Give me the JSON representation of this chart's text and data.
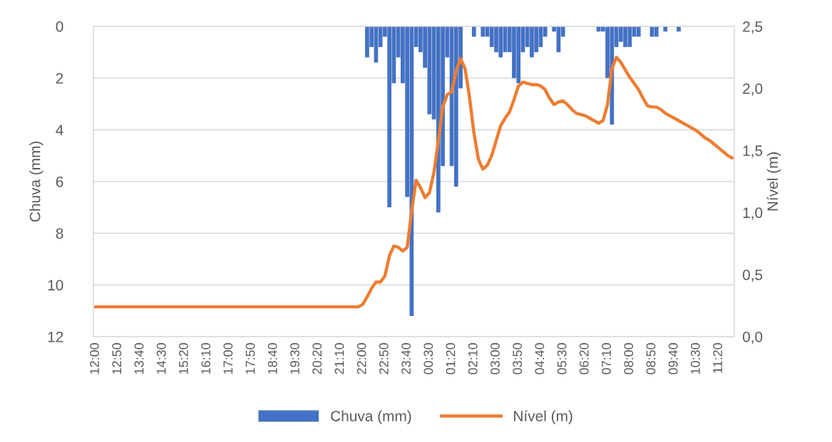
{
  "chart_data": {
    "type": "bar",
    "xlabel": null,
    "ylabel": "Chuva (mm)",
    "y2label": "Nível (m)",
    "categories": [
      "12:00",
      null,
      null,
      null,
      null,
      "12:50",
      null,
      null,
      null,
      null,
      "13:40",
      null,
      null,
      null,
      null,
      "14:30",
      null,
      null,
      null,
      null,
      "15:20",
      null,
      null,
      null,
      null,
      "16:10",
      null,
      null,
      null,
      null,
      "17:00",
      null,
      null,
      null,
      null,
      "17:50",
      null,
      null,
      null,
      null,
      "18:40",
      null,
      null,
      null,
      null,
      "19:30",
      null,
      null,
      null,
      null,
      "20:20",
      null,
      null,
      null,
      null,
      "21:10",
      null,
      null,
      null,
      null,
      "22:00",
      null,
      null,
      null,
      null,
      "22:50",
      null,
      null,
      null,
      null,
      "23:40",
      null,
      null,
      null,
      null,
      "00:30",
      null,
      null,
      null,
      null,
      "01:20",
      null,
      null,
      null,
      null,
      "02:10",
      null,
      null,
      null,
      null,
      "03:00",
      null,
      null,
      null,
      null,
      "03:50",
      null,
      null,
      null,
      null,
      "04:40",
      null,
      null,
      null,
      null,
      "05:30",
      null,
      null,
      null,
      null,
      "06:20",
      null,
      null,
      null,
      null,
      "07:10",
      null,
      null,
      null,
      null,
      "08:00",
      null,
      null,
      null,
      null,
      "08:50",
      null,
      null,
      null,
      null,
      "09:40",
      null,
      null,
      null,
      null,
      "10:30",
      null,
      null,
      null,
      null,
      "11:20",
      null,
      null,
      null
    ],
    "series": [
      {
        "name": "Chuva (mm)",
        "color": "#4472c4",
        "values": [
          0,
          0,
          0,
          0,
          0,
          0,
          0,
          0,
          0,
          0,
          0,
          0,
          0,
          0,
          0,
          0,
          0,
          0,
          0,
          0,
          0,
          0,
          0,
          0,
          0,
          0,
          0,
          0,
          0,
          0,
          0,
          0,
          0,
          0,
          0,
          0,
          0,
          0,
          0,
          0,
          0,
          0,
          0,
          0,
          0,
          0,
          0,
          0,
          0,
          0,
          0,
          0,
          0,
          0,
          0,
          0,
          0,
          0,
          0,
          0,
          0,
          1.2,
          0.8,
          1.4,
          0.8,
          0.4,
          7.0,
          2.2,
          1.2,
          2.2,
          6.6,
          11.2,
          0.8,
          1.0,
          1.6,
          3.4,
          3.6,
          7.2,
          5.4,
          1.2,
          5.4,
          6.2,
          2.4,
          0,
          0,
          0.4,
          0,
          0.4,
          0.4,
          0.8,
          1.0,
          1.2,
          1.0,
          1.0,
          2.0,
          2.2,
          1.0,
          0.8,
          1.2,
          1.0,
          0.8,
          0.4,
          0,
          0.2,
          1.0,
          0.4,
          0,
          0,
          0,
          0,
          0,
          0,
          0,
          0.2,
          0.2,
          2.0,
          3.8,
          0.8,
          0.6,
          0.8,
          0.8,
          0.4,
          0.4,
          0,
          0,
          0.4,
          0.4,
          0,
          0.2,
          0,
          0,
          0.2,
          0,
          0,
          0,
          0,
          0,
          0,
          0,
          0,
          0,
          0,
          0,
          0
        ]
      },
      {
        "name": "Nível (m)",
        "type": "line",
        "axis": "y2",
        "color": "#ed7d31",
        "values": [
          0.24,
          0.24,
          0.24,
          0.24,
          0.24,
          0.24,
          0.24,
          0.24,
          0.24,
          0.24,
          0.24,
          0.24,
          0.24,
          0.24,
          0.24,
          0.24,
          0.24,
          0.24,
          0.24,
          0.24,
          0.24,
          0.24,
          0.24,
          0.24,
          0.24,
          0.24,
          0.24,
          0.24,
          0.24,
          0.24,
          0.24,
          0.24,
          0.24,
          0.24,
          0.24,
          0.24,
          0.24,
          0.24,
          0.24,
          0.24,
          0.24,
          0.24,
          0.24,
          0.24,
          0.24,
          0.24,
          0.24,
          0.24,
          0.24,
          0.24,
          0.24,
          0.24,
          0.24,
          0.24,
          0.24,
          0.24,
          0.24,
          0.24,
          0.24,
          0.24,
          0.26,
          0.32,
          0.39,
          0.44,
          0.44,
          0.49,
          0.65,
          0.73,
          0.72,
          0.69,
          0.72,
          1.01,
          1.26,
          1.2,
          1.12,
          1.16,
          1.32,
          1.58,
          1.85,
          1.95,
          1.97,
          2.14,
          2.24,
          2.16,
          1.93,
          1.64,
          1.43,
          1.35,
          1.38,
          1.46,
          1.58,
          1.7,
          1.76,
          1.81,
          1.91,
          2.02,
          2.05,
          2.04,
          2.03,
          2.03,
          2.02,
          1.99,
          1.92,
          1.87,
          1.89,
          1.9,
          1.87,
          1.83,
          1.8,
          1.79,
          1.78,
          1.76,
          1.74,
          1.72,
          1.74,
          1.87,
          2.16,
          2.25,
          2.21,
          2.15,
          2.09,
          2.04,
          1.99,
          1.92,
          1.86,
          1.85,
          1.85,
          1.83,
          1.8,
          1.78,
          1.76,
          1.74,
          1.72,
          1.7,
          1.68,
          1.66,
          1.63,
          1.6,
          1.58,
          1.55,
          1.52,
          1.49,
          1.46,
          1.44
        ]
      }
    ],
    "ylim": [
      12,
      0
    ],
    "yticks": [
      0,
      2,
      4,
      6,
      8,
      10,
      12
    ],
    "y2lim": [
      0,
      2.5
    ],
    "y2ticks": [
      {
        "value": 0,
        "label": "0,0"
      },
      {
        "value": 0.5,
        "label": "0,5"
      },
      {
        "value": 1,
        "label": "1,0"
      },
      {
        "value": 1.5,
        "label": "1,5"
      },
      {
        "value": 2,
        "label": "2,0"
      },
      {
        "value": 2.5,
        "label": "2,5"
      }
    ],
    "grid": "y",
    "legend": "bottom"
  }
}
